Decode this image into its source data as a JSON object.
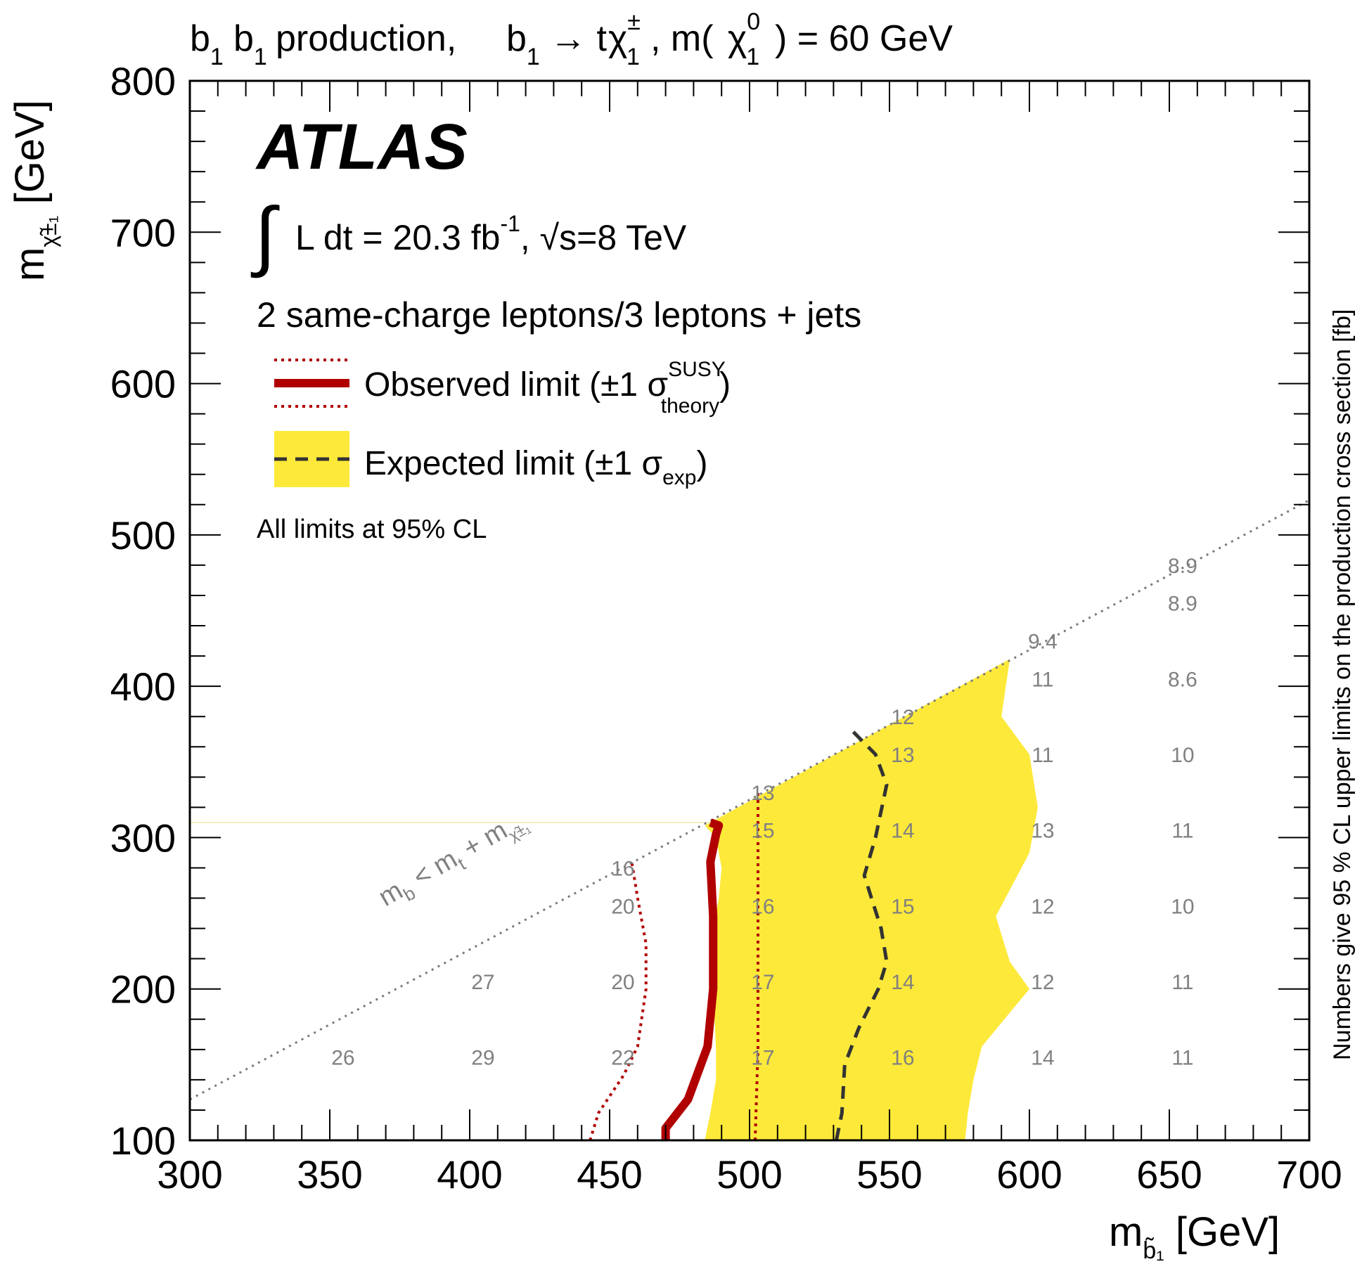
{
  "chart_data": {
    "type": "line",
    "title": "b̃₁ b̃₁ production, b̃₁→ tχ̃±₁, m(χ̃⁰₁) = 60 GeV",
    "title_parts": {
      "pre": "b",
      "main1": " production, ",
      "arrow": "→ t",
      "chi": "χ",
      "comma": ", m(",
      "close": ") = 60 GeV",
      "sub1": "1",
      "sup_pm": "±",
      "sup_zero": "0",
      "tilde": "~"
    },
    "experiment": "ATLAS",
    "lumi_text": "L dt = 20.3 fb",
    "lumi_sup": "-1",
    "lumi_tail": ", √s=8 TeV",
    "selection": "2 same-charge leptons/3 leptons + jets",
    "legend": {
      "placement": "top-left",
      "observed": "Observed limit (±1 σ",
      "observed_sup": "SUSY",
      "observed_sub": "theory",
      "expected": "Expected limit (±1 σ",
      "expected_sub": "exp",
      "close": ")"
    },
    "cl_note": "All limits at 95% CL",
    "xlabel": "m",
    "xlabel_sub": "b̃₁",
    "xlabel_unit": " [GeV]",
    "ylabel": "m",
    "ylabel_sub": "χ̃±₁",
    "ylabel_unit": " [GeV]",
    "zlabel": "Numbers give 95 % CL upper limits on the production cross section [fb]",
    "xlim": [
      300,
      700
    ],
    "ylim": [
      100,
      800
    ],
    "xticks": [
      300,
      350,
      400,
      450,
      500,
      550,
      600,
      650,
      700
    ],
    "yticks": [
      100,
      200,
      300,
      400,
      500,
      600,
      700,
      800
    ],
    "xtick_labels": [
      "300",
      "350",
      "400",
      "450",
      "500",
      "550",
      "600",
      "650",
      "700"
    ],
    "ytick_labels": [
      "100",
      "200",
      "300",
      "400",
      "500",
      "600",
      "700",
      "800"
    ],
    "kinematic_boundary": {
      "label_m": "m",
      "label_sub_b": "b",
      "label_lt": " <  m",
      "label_sub_t": "t",
      "label_plus": " + m",
      "label_sub_chi": "χ̃±₁",
      "x": [
        300,
        700
      ],
      "y": [
        127,
        523
      ]
    },
    "series": [
      {
        "name": "Observed limit",
        "style": "solid",
        "color": "#b00000",
        "x": [
          470,
          470,
          478,
          485,
          487,
          487,
          486,
          488,
          489,
          486
        ],
        "y": [
          100,
          108,
          127,
          162,
          200,
          248,
          284,
          302,
          308,
          310
        ]
      },
      {
        "name": "Observed +1σ",
        "style": "dotted",
        "color": "#b00000",
        "x": [
          502,
          503,
          503,
          503,
          503,
          503
        ],
        "y": [
          100,
          160,
          200,
          240,
          300,
          330
        ]
      },
      {
        "name": "Observed -1σ",
        "style": "dotted",
        "color": "#b00000",
        "x": [
          443,
          446,
          455,
          460,
          463,
          463,
          460,
          458
        ],
        "y": [
          100,
          118,
          143,
          162,
          200,
          230,
          260,
          283
        ]
      },
      {
        "name": "Expected limit",
        "style": "dashed",
        "color": "#333333",
        "x": [
          531,
          533,
          534,
          539,
          546,
          549,
          547,
          541,
          545,
          549,
          545,
          537
        ],
        "y": [
          100,
          118,
          150,
          174,
          200,
          218,
          240,
          275,
          300,
          335,
          355,
          370
        ]
      }
    ],
    "expected_band": {
      "color": "#fde93a",
      "upper_x": [
        577,
        578,
        580,
        583,
        600,
        593,
        588,
        600,
        603,
        600,
        590,
        593
      ],
      "upper_y": [
        100,
        118,
        140,
        162,
        200,
        218,
        248,
        290,
        320,
        355,
        380,
        418
      ],
      "lower_x": [
        484,
        486,
        488,
        488,
        487,
        487,
        489,
        490,
        488,
        484
      ],
      "lower_y": [
        100,
        118,
        140,
        160,
        200,
        240,
        260,
        280,
        300,
        308
      ]
    },
    "cell_values": [
      {
        "x": 354,
        "y": 155,
        "value": "26"
      },
      {
        "x": 404,
        "y": 155,
        "value": "29"
      },
      {
        "x": 404,
        "y": 205,
        "value": "27"
      },
      {
        "x": 454,
        "y": 155,
        "value": "22"
      },
      {
        "x": 454,
        "y": 205,
        "value": "20"
      },
      {
        "x": 454,
        "y": 255,
        "value": "20"
      },
      {
        "x": 454,
        "y": 280,
        "value": "16"
      },
      {
        "x": 504,
        "y": 155,
        "value": "17"
      },
      {
        "x": 504,
        "y": 205,
        "value": "17"
      },
      {
        "x": 504,
        "y": 255,
        "value": "16"
      },
      {
        "x": 504,
        "y": 305,
        "value": "15"
      },
      {
        "x": 504,
        "y": 330,
        "value": "13"
      },
      {
        "x": 554,
        "y": 155,
        "value": "16"
      },
      {
        "x": 554,
        "y": 205,
        "value": "14"
      },
      {
        "x": 554,
        "y": 255,
        "value": "15"
      },
      {
        "x": 554,
        "y": 305,
        "value": "14"
      },
      {
        "x": 554,
        "y": 355,
        "value": "13"
      },
      {
        "x": 554,
        "y": 380,
        "value": "12"
      },
      {
        "x": 604,
        "y": 155,
        "value": "14"
      },
      {
        "x": 604,
        "y": 205,
        "value": "12"
      },
      {
        "x": 604,
        "y": 255,
        "value": "12"
      },
      {
        "x": 604,
        "y": 305,
        "value": "13"
      },
      {
        "x": 604,
        "y": 355,
        "value": "11"
      },
      {
        "x": 604,
        "y": 405,
        "value": "11"
      },
      {
        "x": 604,
        "y": 430,
        "value": "9.4"
      },
      {
        "x": 654,
        "y": 155,
        "value": "11"
      },
      {
        "x": 654,
        "y": 205,
        "value": "11"
      },
      {
        "x": 654,
        "y": 255,
        "value": "10"
      },
      {
        "x": 654,
        "y": 305,
        "value": "11"
      },
      {
        "x": 654,
        "y": 355,
        "value": "10"
      },
      {
        "x": 654,
        "y": 405,
        "value": "8.6"
      },
      {
        "x": 654,
        "y": 455,
        "value": "8.9"
      },
      {
        "x": 654,
        "y": 480,
        "value": "8.9"
      }
    ],
    "grid": false
  }
}
